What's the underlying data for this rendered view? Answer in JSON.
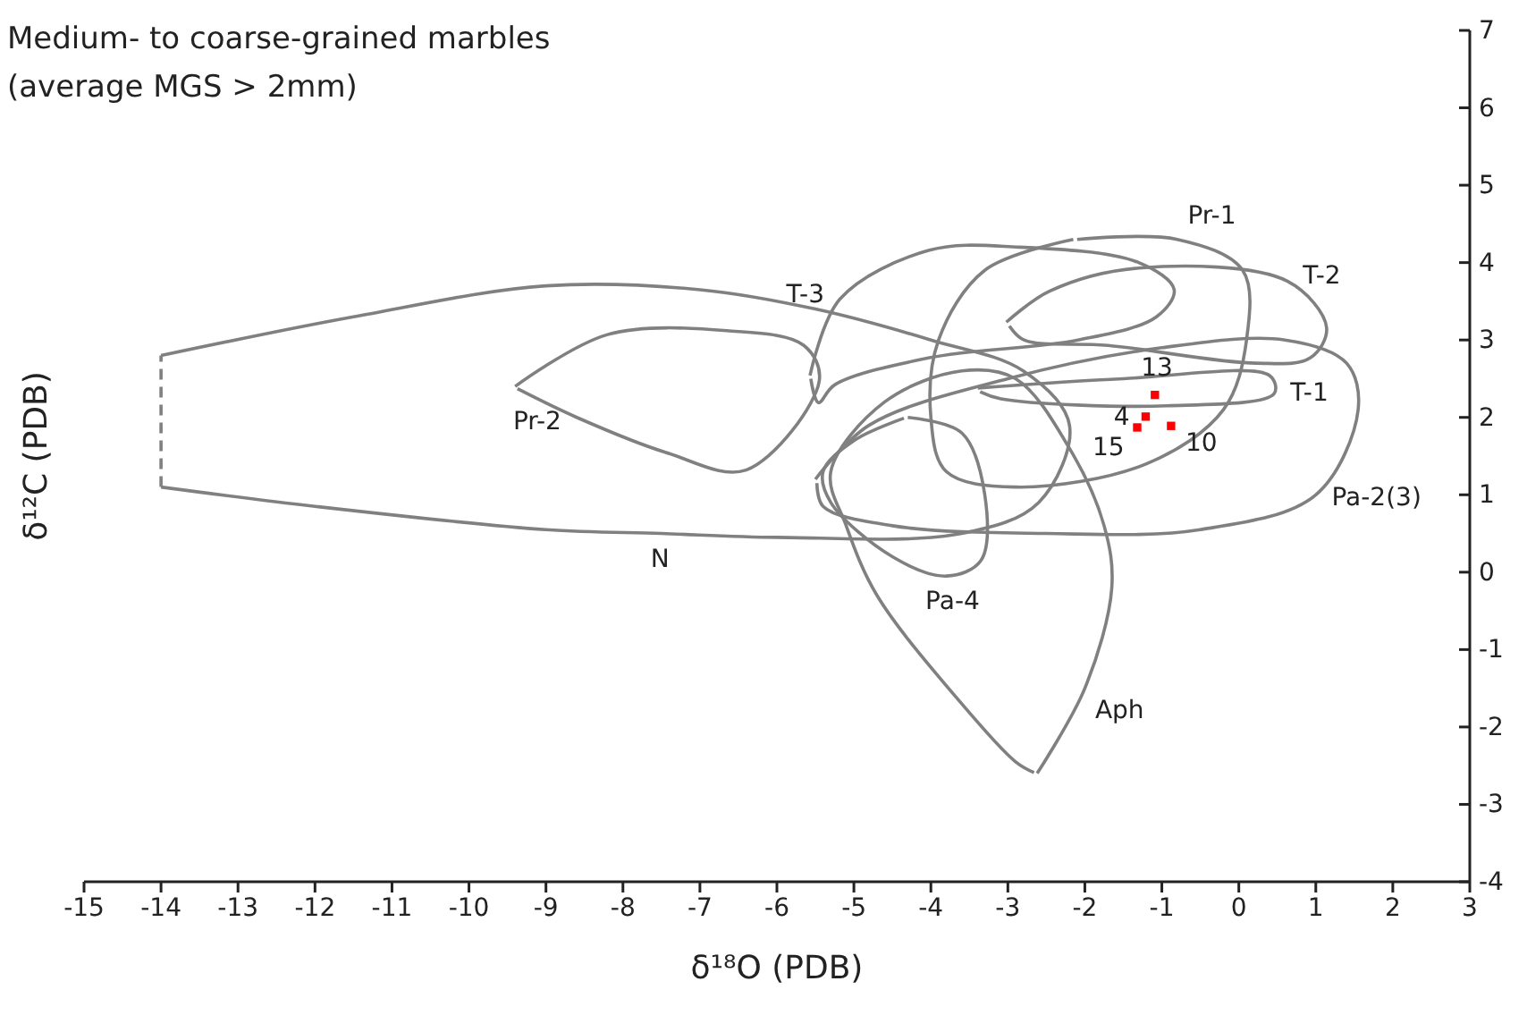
{
  "chart_data": {
    "type": "line",
    "title": "Medium- to coarse-grained marbles",
    "subtitle": "(average MGS > 2mm)",
    "xlabel": "δ¹⁸O (PDB)",
    "ylabel": "δ¹²C (PDB)",
    "xlim": [
      -15,
      3
    ],
    "xticks": [
      -15,
      -14,
      -13,
      -12,
      -11,
      -10,
      -9,
      -8,
      -7,
      -6,
      -5,
      -4,
      -3,
      -2,
      -1,
      0,
      1,
      2,
      3
    ],
    "ylim": [
      -4,
      7
    ],
    "yticks": [
      -4,
      -3,
      -2,
      -1,
      0,
      1,
      2,
      3,
      4,
      5,
      6,
      7
    ],
    "grid": false,
    "marker": "none",
    "series": [
      {
        "color": "#808080",
        "x": [
          -14,
          -11.5,
          -9,
          -7,
          -5.5,
          -4,
          -2.8,
          -2.2,
          -2.6,
          -3.6,
          -6,
          -7.5,
          -9,
          -12,
          -14
        ],
        "values": [
          2.8,
          3.3,
          3.7,
          3.65,
          3.4,
          3.0,
          2.6,
          1.9,
          0.9,
          0.5,
          0.45,
          0.5,
          0.55,
          0.85,
          1.1
        ]
      },
      {
        "color": "#808080",
        "line_style": "dashed",
        "x": [
          -14,
          -14
        ],
        "values": [
          1.1,
          2.8
        ]
      },
      {
        "color": "#808080",
        "x": [
          -9.4,
          -8.2,
          -6.65,
          -5.65,
          -5.45,
          -6.4,
          -7.45,
          -8.6,
          -9.37
        ],
        "values": [
          2.4,
          3.07,
          3.12,
          2.93,
          2.47,
          1.32,
          1.55,
          2.0,
          2.37
        ]
      },
      {
        "color": "#808080",
        "x": [
          -5.57,
          -5.18,
          -4.02,
          -2.86,
          -1.3,
          -0.84,
          -1.07,
          -2.09,
          -4.02,
          -5.25,
          -5.46,
          -5.56
        ],
        "values": [
          2.54,
          3.53,
          4.16,
          4.2,
          4.0,
          3.65,
          3.3,
          3.0,
          2.77,
          2.42,
          2.19,
          2.5
        ]
      },
      {
        "color": "#808080",
        "x": [
          -2.1,
          -0.8,
          0.05,
          0.1,
          -0.2,
          -1.2,
          -2.9,
          -3.8,
          -4.0,
          -3.9,
          -3.3,
          -2.15
        ],
        "values": [
          4.3,
          4.3,
          3.9,
          3.0,
          2.1,
          1.4,
          1.1,
          1.3,
          2.0,
          3.0,
          3.9,
          4.3
        ]
      },
      {
        "color": "#808080",
        "x": [
          -3.02,
          -2.46,
          -1.3,
          0.63,
          1.14,
          0.93,
          0.23,
          -1.7,
          -2.79,
          -2.98
        ],
        "values": [
          3.23,
          3.63,
          3.93,
          3.76,
          3.16,
          2.77,
          2.7,
          2.93,
          3.0,
          3.18
        ]
      },
      {
        "color": "#808080",
        "x": [
          -3.39,
          -1.5,
          0.4,
          0.46,
          -0.93,
          -3.09,
          -3.36
        ],
        "values": [
          2.38,
          2.5,
          2.54,
          2.31,
          2.15,
          2.24,
          2.33
        ]
      },
      {
        "color": "#808080",
        "x": [
          -5.5,
          -4.8,
          -3,
          -1,
          0.6,
          1.4,
          1.55,
          1.0,
          -0.5,
          -2.5,
          -4.5,
          -5.4,
          -5.48
        ],
        "values": [
          1.2,
          1.9,
          2.5,
          2.9,
          3.0,
          2.7,
          2.1,
          1.0,
          0.55,
          0.5,
          0.6,
          0.85,
          1.15
        ]
      },
      {
        "color": "#808080",
        "x": [
          -4.3,
          -3.6,
          -3.3,
          -3.35,
          -3.8,
          -4.5,
          -5.3,
          -5.4,
          -5.0,
          -4.35
        ],
        "values": [
          2.0,
          1.8,
          1.0,
          0.15,
          -0.05,
          0.2,
          0.9,
          1.3,
          1.7,
          1.99
        ]
      },
      {
        "color": "#808080",
        "x": [
          -2.62,
          -2.0,
          -1.65,
          -1.75,
          -2.2,
          -2.9,
          -3.6,
          -4.6,
          -5.3,
          -5.1,
          -4.7,
          -3.6,
          -2.9,
          -2.66
        ],
        "values": [
          -2.6,
          -1.5,
          -0.2,
          0.6,
          1.6,
          2.5,
          2.6,
          2.2,
          1.3,
          0.6,
          -0.3,
          -1.7,
          -2.45,
          -2.59
        ]
      },
      {
        "type": "scatter",
        "color": "#ff0000",
        "marker": "square",
        "x": [
          -1.09,
          -1.21,
          -1.32,
          -0.88
        ],
        "values": [
          2.29,
          2.01,
          1.87,
          1.89
        ]
      }
    ],
    "annotations": [
      {
        "text": "N",
        "x": -7.5,
        "y": 0.5
      },
      {
        "text": "Pr-2",
        "x": -8.6,
        "y": 2.0
      },
      {
        "text": "T-3",
        "x": -5.18,
        "y": 3.53
      },
      {
        "text": "Pr-1",
        "x": -0.8,
        "y": 4.3
      },
      {
        "text": "T-2",
        "x": 0.63,
        "y": 3.76
      },
      {
        "text": "T-1",
        "x": 0.46,
        "y": 2.31
      },
      {
        "text": "Pa-2(3)",
        "x": 1.0,
        "y": 1.0
      },
      {
        "text": "Pa-4",
        "x": -3.8,
        "y": -0.05
      },
      {
        "text": "Aph",
        "x": -2.0,
        "y": -1.5
      },
      {
        "text": "13",
        "x": -1.09,
        "y": 2.29
      },
      {
        "text": "4",
        "x": -1.21,
        "y": 2.01
      },
      {
        "text": "15",
        "x": -1.32,
        "y": 1.87
      },
      {
        "text": "10",
        "x": -0.88,
        "y": 1.89
      }
    ]
  }
}
